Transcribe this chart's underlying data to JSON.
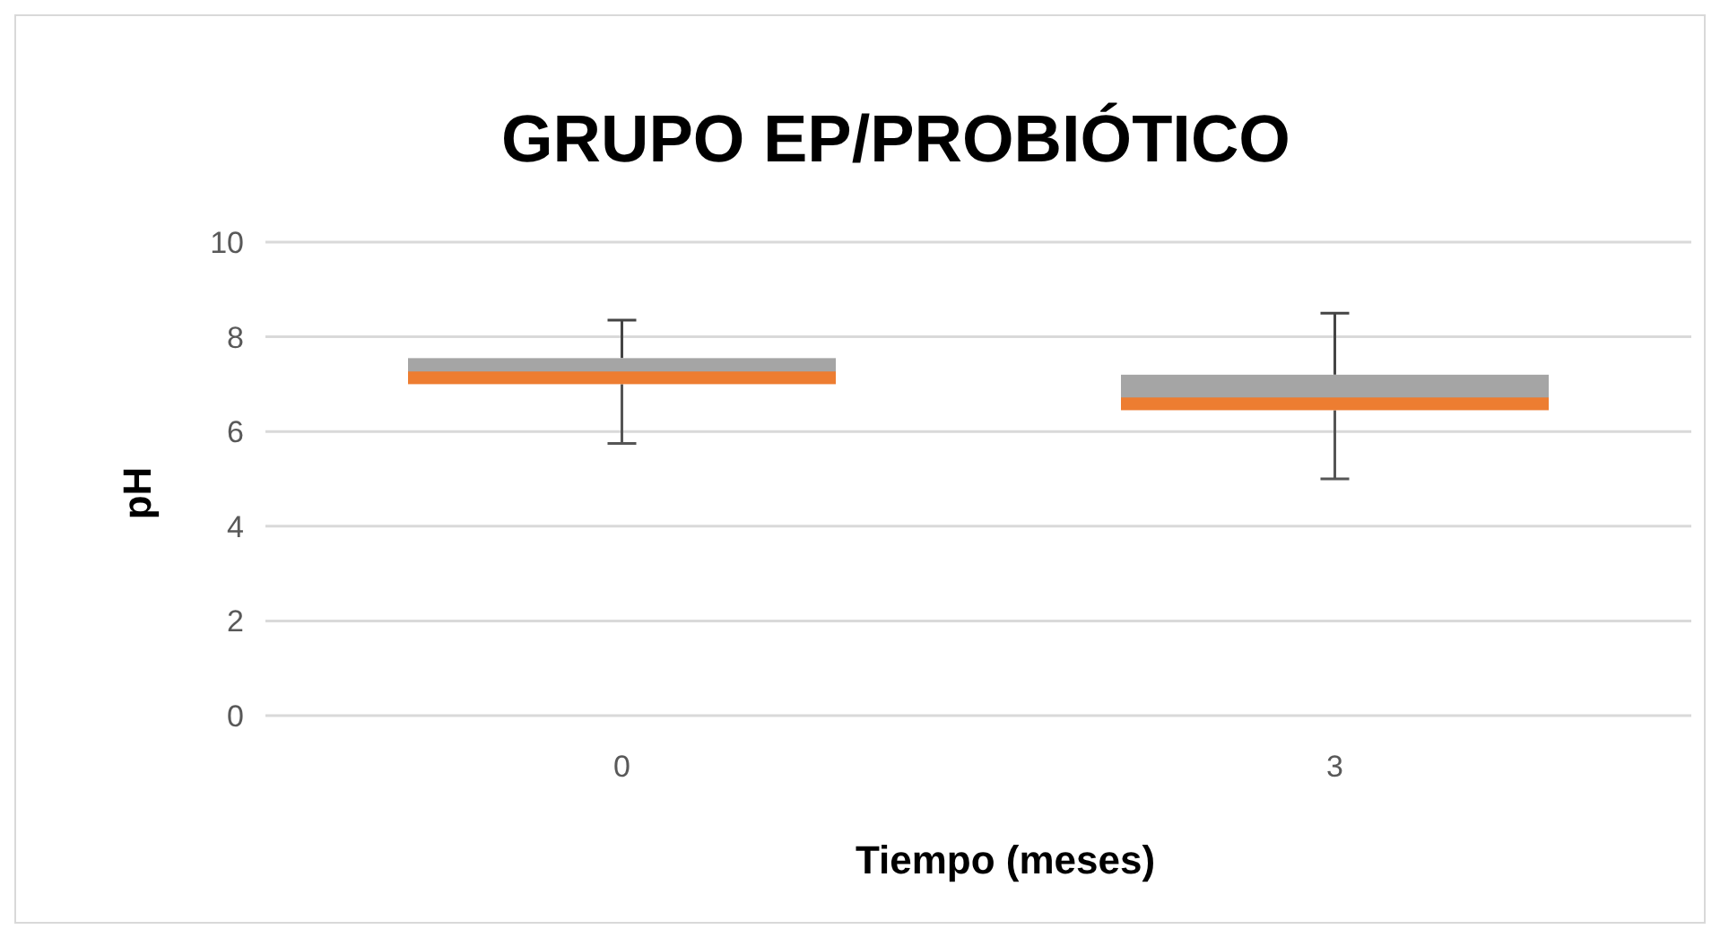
{
  "chart_data": {
    "type": "box",
    "title": "GRUPO EP/PROBIÓTICO",
    "xlabel": "Tiempo (meses)",
    "ylabel": "pH",
    "categories": [
      "0",
      "3"
    ],
    "boxes": [
      {
        "low": 5.75,
        "q1": 7.0,
        "median": 7.25,
        "q3": 7.55,
        "high": 8.35
      },
      {
        "low": 5.0,
        "q1": 6.45,
        "median": 6.7,
        "q3": 7.2,
        "high": 8.5
      }
    ],
    "color": "#a5a5a5",
    "ylim": [
      0,
      10
    ],
    "yticks": [
      0,
      2,
      4,
      6,
      8,
      10
    ],
    "grid": "y"
  }
}
